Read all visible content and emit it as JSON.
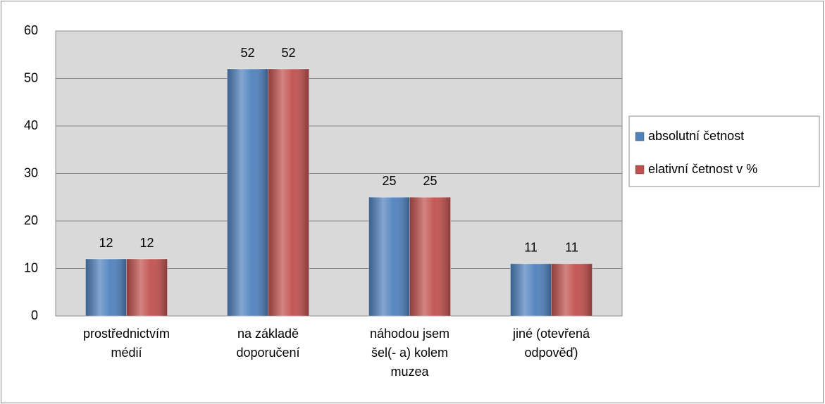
{
  "chart_data": {
    "type": "bar",
    "categories": [
      "prostřednictvím médií",
      "na základě doporučení",
      "náhodou jsem šel(- a) kolem muzea",
      "jiné (otevřená odpověď)"
    ],
    "series": [
      {
        "name": "absolutní četnost",
        "color": "#4f81bd",
        "values": [
          12,
          52,
          25,
          11
        ]
      },
      {
        "name": "elativní četnost v %",
        "color": "#c0504d",
        "values": [
          12,
          52,
          25,
          11
        ]
      }
    ],
    "ylim": [
      0,
      60
    ],
    "yticks": [
      0,
      10,
      20,
      30,
      40,
      50,
      60
    ],
    "grid": true,
    "legend": "right"
  }
}
